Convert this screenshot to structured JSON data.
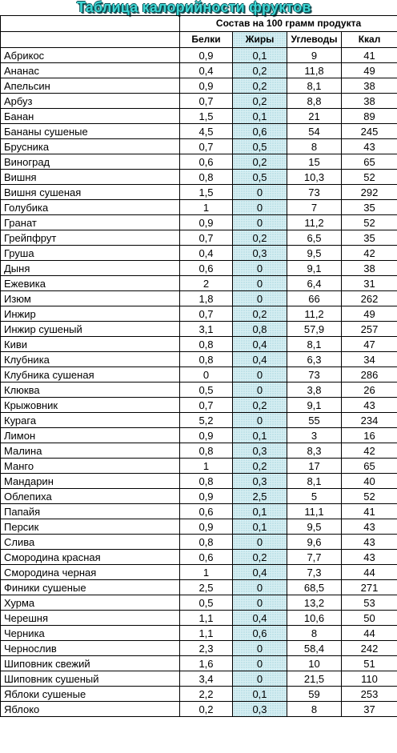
{
  "title": "Таблица калорийности фруктов",
  "header": {
    "group": "Состав на 100 грамм продукта",
    "columns": [
      "Белки",
      "Жиры",
      "Углеводы",
      "Ккал"
    ]
  },
  "colors": {
    "title": "#3fd7d4",
    "fat_column": "#d6eef2"
  },
  "rows": [
    [
      "Абрикос",
      "0,9",
      "0,1",
      "9",
      "41"
    ],
    [
      "Ананас",
      "0,4",
      "0,2",
      "11,8",
      "49"
    ],
    [
      "Апельсин",
      "0,9",
      "0,2",
      "8,1",
      "38"
    ],
    [
      "Арбуз",
      "0,7",
      "0,2",
      "8,8",
      "38"
    ],
    [
      "Банан",
      "1,5",
      "0,1",
      "21",
      "89"
    ],
    [
      "Бананы сушеные",
      "4,5",
      "0,6",
      "54",
      "245"
    ],
    [
      "Брусника",
      "0,7",
      "0,5",
      "8",
      "43"
    ],
    [
      "Виноград",
      "0,6",
      "0,2",
      "15",
      "65"
    ],
    [
      "Вишня",
      "0,8",
      "0,5",
      "10,3",
      "52"
    ],
    [
      "Вишня сушеная",
      "1,5",
      "0",
      "73",
      "292"
    ],
    [
      "Голубика",
      "1",
      "0",
      "7",
      "35"
    ],
    [
      "Гранат",
      "0,9",
      "0",
      "11,2",
      "52"
    ],
    [
      "Грейпфрут",
      "0,7",
      "0,2",
      "6,5",
      "35"
    ],
    [
      "Груша",
      "0,4",
      "0,3",
      "9,5",
      "42"
    ],
    [
      "Дыня",
      "0,6",
      "0",
      "9,1",
      "38"
    ],
    [
      "Ежевика",
      "2",
      "0",
      "6,4",
      "31"
    ],
    [
      "Изюм",
      "1,8",
      "0",
      "66",
      "262"
    ],
    [
      "Инжир",
      "0,7",
      "0,2",
      "11,2",
      "49"
    ],
    [
      "Инжир сушеный",
      "3,1",
      "0,8",
      "57,9",
      "257"
    ],
    [
      "Киви",
      "0,8",
      "0,4",
      "8,1",
      "47"
    ],
    [
      "Клубника",
      "0,8",
      "0,4",
      "6,3",
      "34"
    ],
    [
      "Клубника сушеная",
      "0",
      "0",
      "73",
      "286"
    ],
    [
      "Клюква",
      "0,5",
      "0",
      "3,8",
      "26"
    ],
    [
      "Крыжовник",
      "0,7",
      "0,2",
      "9,1",
      "43"
    ],
    [
      "Курага",
      "5,2",
      "0",
      "55",
      "234"
    ],
    [
      "Лимон",
      "0,9",
      "0,1",
      "3",
      "16"
    ],
    [
      "Малина",
      "0,8",
      "0,3",
      "8,3",
      "42"
    ],
    [
      "Манго",
      "1",
      "0,2",
      "17",
      "65"
    ],
    [
      "Мандарин",
      "0,8",
      "0,3",
      "8,1",
      "40"
    ],
    [
      "Облепиха",
      "0,9",
      "2,5",
      "5",
      "52"
    ],
    [
      "Папайя",
      "0,6",
      "0,1",
      "11,1",
      "41"
    ],
    [
      "Персик",
      "0,9",
      "0,1",
      "9,5",
      "43"
    ],
    [
      "Слива",
      "0,8",
      "0",
      "9,6",
      "43"
    ],
    [
      "Смородина красная",
      "0,6",
      "0,2",
      "7,7",
      "43"
    ],
    [
      "Смородина черная",
      "1",
      "0,4",
      "7,3",
      "44"
    ],
    [
      "Финики сушеные",
      "2,5",
      "0",
      "68,5",
      "271"
    ],
    [
      "Хурма",
      "0,5",
      "0",
      "13,2",
      "53"
    ],
    [
      "Черешня",
      "1,1",
      "0,4",
      "10,6",
      "50"
    ],
    [
      "Черника",
      "1,1",
      "0,6",
      "8",
      "44"
    ],
    [
      "Чернослив",
      "2,3",
      "0",
      "58,4",
      "242"
    ],
    [
      "Шиповник свежий",
      "1,6",
      "0",
      "10",
      "51"
    ],
    [
      "Шиповник сушеный",
      "3,4",
      "0",
      "21,5",
      "110"
    ],
    [
      "Яблоки сушеные",
      "2,2",
      "0,1",
      "59",
      "253"
    ],
    [
      "Яблоко",
      "0,2",
      "0,3",
      "8",
      "37"
    ]
  ]
}
